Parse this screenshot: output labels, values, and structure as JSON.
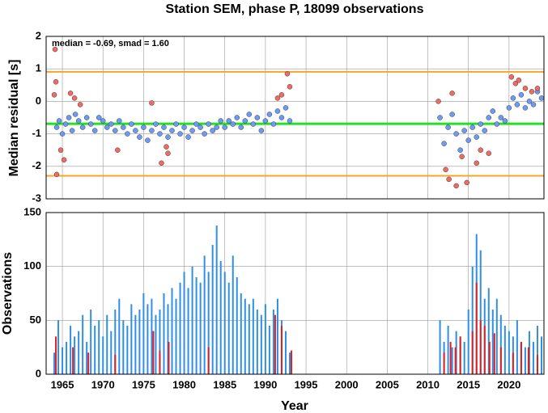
{
  "chart_data": [
    {
      "type": "scatter",
      "title": "Station SEM, phase P, 18099 observations",
      "ylabel": "Median residual [s]",
      "annotation": "median = -0.69, smad = 1.60",
      "xlim": [
        1963,
        2024.3
      ],
      "xticks": [
        1965,
        1970,
        1975,
        1980,
        1985,
        1990,
        1995,
        2000,
        2005,
        2010,
        2015,
        2020
      ],
      "ylim": [
        -3,
        2
      ],
      "yticks": [
        -3,
        -2,
        -1,
        0,
        1,
        2
      ],
      "grid": true,
      "hlines": [
        {
          "value": 0.91,
          "color": "#f5a623"
        },
        {
          "value": -0.69,
          "color": "#22e022"
        },
        {
          "value": -2.29,
          "color": "#f5a623"
        }
      ],
      "series": [
        {
          "color": "#6b9cf5",
          "x": [
            1964.3,
            1964.6,
            1965.0,
            1965.4,
            1965.8,
            1966.2,
            1966.6,
            1967.0,
            1967.5,
            1968.0,
            1968.5,
            1969.0,
            1969.5,
            1970.0,
            1970.5,
            1971.0,
            1971.5,
            1972.0,
            1972.5,
            1973.0,
            1973.5,
            1974.0,
            1974.5,
            1975.0,
            1975.5,
            1976.0,
            1976.5,
            1977.0,
            1977.5,
            1978.0,
            1978.5,
            1979.0,
            1979.5,
            1980.0,
            1980.5,
            1981.0,
            1981.5,
            1982.0,
            1982.5,
            1983.0,
            1983.5,
            1984.0,
            1984.5,
            1985.0,
            1985.5,
            1986.0,
            1986.5,
            1987.0,
            1987.5,
            1988.0,
            1988.5,
            1989.0,
            1989.5,
            1990.0,
            1990.5,
            1991.0,
            1991.5,
            1992.0,
            1992.5,
            1993.0,
            2011.5,
            2012.0,
            2012.5,
            2013.0,
            2013.5,
            2014.0,
            2014.5,
            2015.0,
            2015.5,
            2016.0,
            2016.5,
            2017.0,
            2017.5,
            2018.0,
            2018.5,
            2019.0,
            2019.5,
            2020.0,
            2020.5,
            2021.0,
            2021.5,
            2022.0,
            2022.5,
            2023.0,
            2023.5,
            2024.0
          ],
          "values": [
            -0.8,
            -0.6,
            -1.0,
            -0.7,
            -0.5,
            -0.9,
            -0.4,
            -0.6,
            -0.8,
            -0.5,
            -0.7,
            -0.9,
            -0.5,
            -0.6,
            -0.8,
            -0.7,
            -0.9,
            -0.6,
            -0.8,
            -1.0,
            -0.7,
            -0.9,
            -1.1,
            -0.8,
            -1.2,
            -0.9,
            -0.7,
            -1.0,
            -0.8,
            -1.1,
            -0.9,
            -0.7,
            -1.0,
            -0.8,
            -1.1,
            -0.9,
            -0.7,
            -0.8,
            -1.0,
            -0.7,
            -0.9,
            -0.8,
            -0.6,
            -0.8,
            -0.6,
            -0.7,
            -0.5,
            -0.8,
            -0.6,
            -0.4,
            -0.7,
            -0.5,
            -0.9,
            -0.6,
            -0.4,
            -0.7,
            -0.3,
            -0.5,
            -0.2,
            -0.6,
            -0.5,
            -1.3,
            -0.8,
            -0.4,
            -1.0,
            -1.5,
            -0.9,
            -1.2,
            -0.8,
            -1.1,
            -0.7,
            -0.9,
            -0.5,
            -0.3,
            -0.7,
            -0.5,
            -0.6,
            -0.2,
            0.1,
            -0.1,
            0.2,
            -0.2,
            0.0,
            -0.1,
            0.3,
            0.1
          ]
        },
        {
          "color": "#f26b5e",
          "x": [
            1964.0,
            1964.1,
            1964.2,
            1964.3,
            1964.8,
            1965.2,
            1966.0,
            1966.5,
            1967.2,
            1971.8,
            1976.0,
            1977.2,
            1977.8,
            1978.0,
            1991.5,
            1992.0,
            1992.7,
            1993.0,
            2011.3,
            2012.2,
            2012.6,
            2013.0,
            2013.5,
            2014.2,
            2014.8,
            2016.0,
            2016.5,
            2017.5,
            2020.3,
            2020.8,
            2021.2,
            2022.0,
            2022.8,
            2023.5
          ],
          "values": [
            0.2,
            1.6,
            0.6,
            -2.25,
            -1.5,
            -1.8,
            0.25,
            0.1,
            -0.1,
            -1.5,
            -0.05,
            -1.9,
            -1.4,
            -1.6,
            0.1,
            0.2,
            0.85,
            0.45,
            0.0,
            -2.1,
            -2.4,
            0.25,
            -2.6,
            -1.7,
            -2.5,
            -1.9,
            -1.5,
            -1.6,
            0.75,
            0.55,
            0.65,
            0.4,
            0.3,
            0.4
          ]
        }
      ]
    },
    {
      "type": "bar",
      "xlabel": "Year",
      "ylabel": "Observations",
      "xlim": [
        1963,
        2024.3
      ],
      "xticks": [
        1965,
        1970,
        1975,
        1980,
        1985,
        1990,
        1995,
        2000,
        2005,
        2010,
        2015,
        2020
      ],
      "ylim": [
        0,
        150
      ],
      "yticks": [
        0,
        50,
        100,
        150
      ],
      "grid": true,
      "series": [
        {
          "color": "#2f8fe8",
          "x": [
            1964.0,
            1964.5,
            1965.0,
            1965.5,
            1966.0,
            1966.5,
            1967.0,
            1967.5,
            1968.0,
            1968.5,
            1969.0,
            1969.5,
            1970.0,
            1970.5,
            1971.0,
            1971.5,
            1972.0,
            1972.5,
            1973.0,
            1973.5,
            1974.0,
            1974.5,
            1975.0,
            1975.5,
            1976.0,
            1976.5,
            1977.0,
            1977.5,
            1978.0,
            1978.5,
            1979.0,
            1979.5,
            1980.0,
            1980.5,
            1981.0,
            1981.5,
            1982.0,
            1982.5,
            1983.0,
            1983.5,
            1984.0,
            1984.5,
            1985.0,
            1985.5,
            1986.0,
            1986.5,
            1987.0,
            1987.5,
            1988.0,
            1988.5,
            1989.0,
            1989.5,
            1990.0,
            1990.5,
            1991.0,
            1991.5,
            1992.0,
            1992.5,
            1993.0,
            2011.5,
            2012.0,
            2012.5,
            2013.0,
            2013.5,
            2014.0,
            2014.5,
            2015.0,
            2015.5,
            2016.0,
            2016.5,
            2017.0,
            2017.5,
            2018.0,
            2018.5,
            2019.0,
            2019.5,
            2020.0,
            2020.5,
            2021.0,
            2021.5,
            2022.0,
            2022.5,
            2023.0,
            2023.5,
            2024.0
          ],
          "values": [
            20,
            50,
            25,
            30,
            45,
            35,
            40,
            55,
            30,
            60,
            45,
            50,
            35,
            55,
            40,
            60,
            70,
            50,
            45,
            65,
            55,
            60,
            75,
            65,
            70,
            55,
            60,
            75,
            65,
            80,
            70,
            85,
            95,
            80,
            100,
            90,
            85,
            110,
            95,
            120,
            138,
            105,
            95,
            85,
            110,
            90,
            75,
            70,
            65,
            70,
            60,
            55,
            65,
            45,
            60,
            70,
            50,
            40,
            20,
            50,
            30,
            45,
            25,
            40,
            35,
            30,
            60,
            100,
            130,
            115,
            70,
            80,
            60,
            70,
            55,
            45,
            40,
            35,
            50,
            30,
            25,
            40,
            30,
            45,
            35
          ]
        },
        {
          "color": "#e02020",
          "x": [
            1964.2,
            1966.3,
            1968.2,
            1971.5,
            1976.2,
            1977.0,
            1978.1,
            1983.0,
            1991.2,
            1992.0,
            1993.2,
            2012.0,
            2012.8,
            2013.4,
            2014.0,
            2015.5,
            2016.0,
            2016.5,
            2017.0,
            2017.6,
            2018.2,
            2019.0,
            2020.5,
            2021.5,
            2022.4,
            2023.5
          ],
          "values": [
            35,
            25,
            20,
            18,
            40,
            22,
            30,
            25,
            55,
            45,
            22,
            20,
            30,
            25,
            35,
            40,
            85,
            50,
            45,
            30,
            38,
            25,
            20,
            30,
            25,
            18
          ]
        }
      ]
    }
  ]
}
